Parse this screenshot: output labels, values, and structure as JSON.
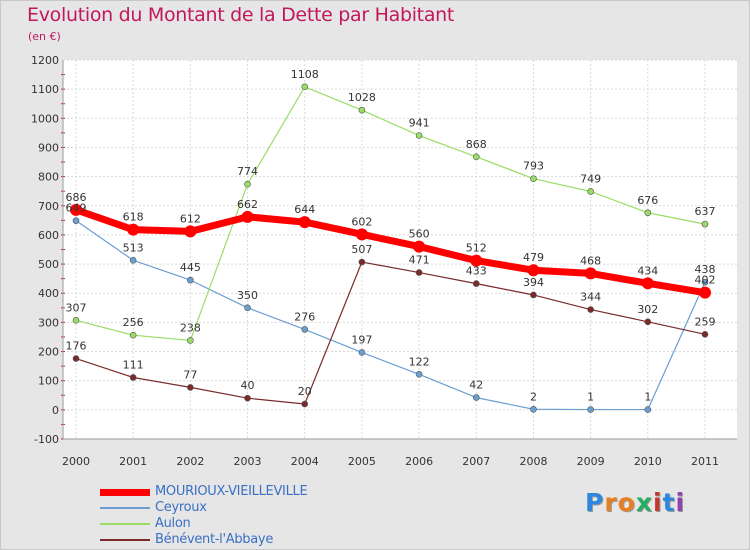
{
  "title": "Evolution du Montant de la Dette par Habitant",
  "subtitle": "(en €)",
  "logo": {
    "text": "Proxiti",
    "letters": [
      {
        "char": "P",
        "color": "#2e86de"
      },
      {
        "char": "r",
        "color": "#e67e22"
      },
      {
        "char": "o",
        "color": "#e67e22"
      },
      {
        "char": "x",
        "color": "#27ae60"
      },
      {
        "char": "i",
        "color": "#c0392b"
      },
      {
        "char": "t",
        "color": "#2e86de"
      },
      {
        "char": "i",
        "color": "#8e44ad"
      }
    ]
  },
  "chart_data": {
    "type": "line",
    "title": "Evolution du Montant de la Dette par Habitant",
    "subtitle": "(en €)",
    "xlabel": "",
    "ylabel": "",
    "x": [
      "2000",
      "2001",
      "2002",
      "2003",
      "2004",
      "2005",
      "2006",
      "2007",
      "2008",
      "2009",
      "2010",
      "2011"
    ],
    "ylim": [
      -100,
      1200
    ],
    "yticks": [
      -100,
      0,
      100,
      200,
      300,
      400,
      500,
      600,
      700,
      800,
      900,
      1000,
      1100,
      1200
    ],
    "grid": true,
    "legend": "bottom-left",
    "series": [
      {
        "name": "MOURIOUX-VIEILLEVILLE",
        "color": "#ff0000",
        "emphasis": true,
        "values": [
          686,
          618,
          612,
          662,
          644,
          602,
          560,
          512,
          479,
          468,
          434,
          402
        ]
      },
      {
        "name": "Ceyroux",
        "color": "#6b9fd1",
        "values": [
          649,
          513,
          445,
          350,
          276,
          197,
          122,
          42,
          2,
          1,
          1,
          438
        ]
      },
      {
        "name": "Aulon",
        "color": "#99dd66",
        "values": [
          307,
          256,
          238,
          774,
          1108,
          1028,
          941,
          868,
          793,
          749,
          676,
          637
        ]
      },
      {
        "name": "Bénévent-l'Abbaye",
        "color": "#7a2a2a",
        "values": [
          176,
          111,
          77,
          40,
          20,
          507,
          471,
          433,
          394,
          344,
          302,
          259
        ]
      }
    ]
  }
}
